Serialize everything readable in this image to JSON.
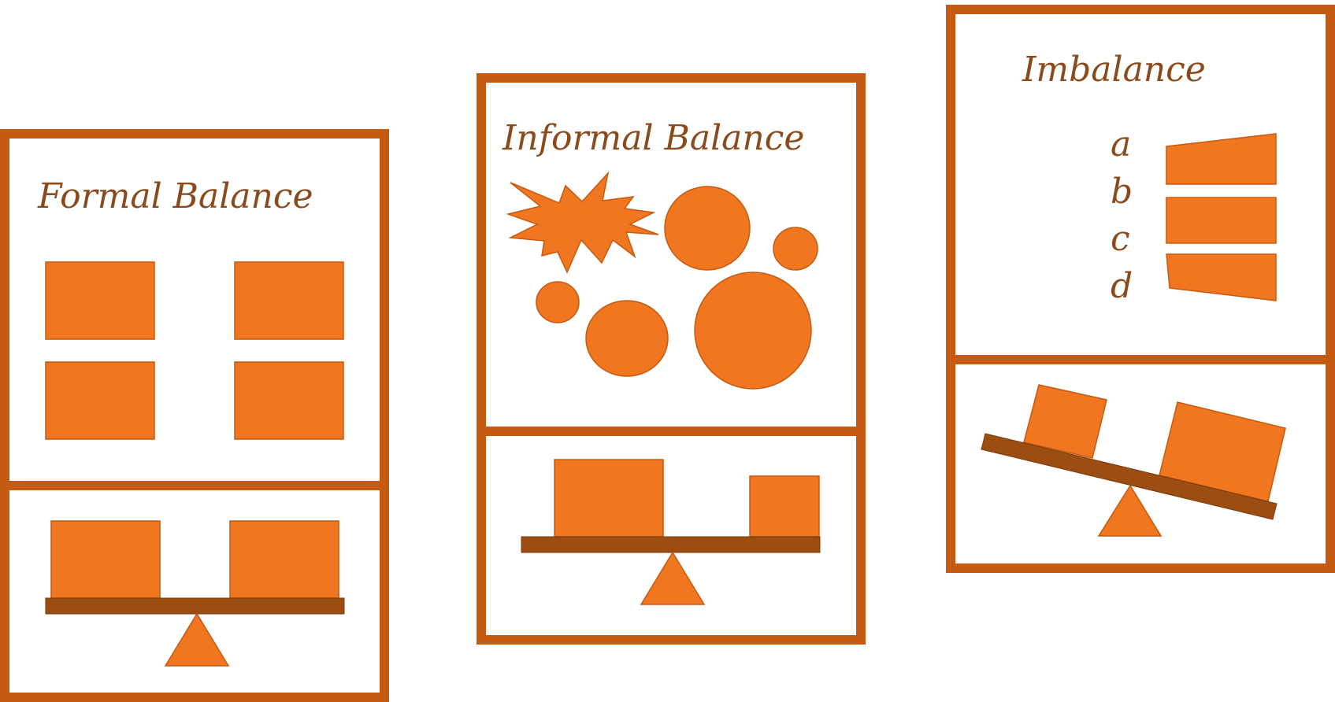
{
  "colors": {
    "frame": "#c55a11",
    "shape_fill": "#f07620",
    "shape_stroke": "#c55a11",
    "beam": "#9c4d12",
    "title_text": "#8a4a1c"
  },
  "cards": [
    {
      "title": "Formal Balance"
    },
    {
      "title": "Informal Balance"
    },
    {
      "title": "Imbalance",
      "letters": [
        "a",
        "b",
        "c",
        "d"
      ]
    }
  ]
}
